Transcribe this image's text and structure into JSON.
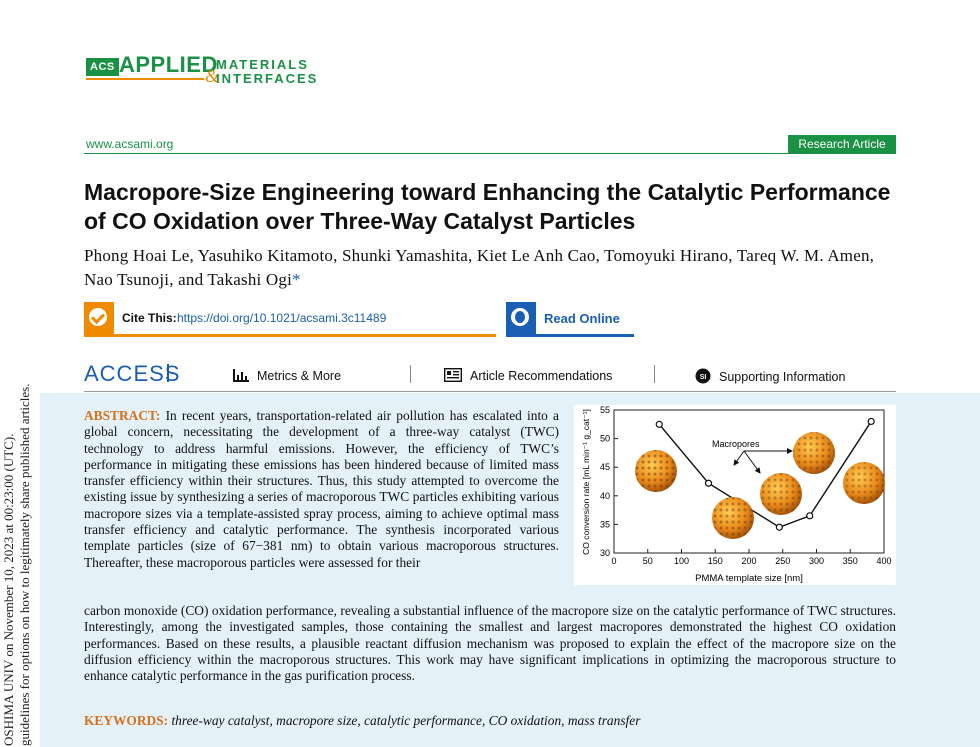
{
  "sidebar": {
    "line1": "OSHIMA UNIV on November 10, 2023 at 00:23:00 (UTC).",
    "line2": "guidelines for options on how to legitimately share published articles."
  },
  "journal": {
    "acs": "ACS",
    "applied": "APPLIED",
    "materials": "MATERIALS",
    "amp": "&",
    "interfaces": "INTERFACES",
    "site": "www.acsami.org",
    "article_type": "Research Article"
  },
  "paper": {
    "title": "Macropore-Size Engineering toward Enhancing the Catalytic Performance of CO Oxidation over Three-Way Catalyst Particles",
    "authors": "Phong Hoai Le, Yasuhiko Kitamoto, Shunki Yamashita, Kiet Le Anh Cao, Tomoyuki Hirano, Tareq W. M. Amen, Nao Tsunoji, and Takashi Ogi",
    "author_star": "*"
  },
  "cite": {
    "label": "Cite This:",
    "doi": "https://doi.org/10.1021/acsami.3c11489",
    "read_online": "Read Online"
  },
  "access_bar": {
    "access": "ACCESS",
    "metrics": "Metrics & More",
    "recommendations": "Article Recommendations",
    "supporting": "Supporting Information",
    "si_badge": "SI"
  },
  "abstract": {
    "heading": "ABSTRACT:",
    "part1": "In recent years, transportation-related air pollution has escalated into a global concern, necessitating the development of a three-way catalyst (TWC) technology to address harmful emissions. However, the efficiency of TWC’s performance in mitigating these emissions has been hindered because of limited mass transfer efficiency within their structures. Thus, this study attempted to overcome the existing issue by synthesizing a series of macroporous TWC particles exhibiting various macropore sizes via a template-assisted spray process, aiming to achieve optimal mass transfer efficiency and catalytic performance. The synthesis incorporated various template particles (size of 67−381 nm) to obtain various macroporous structures. Thereafter, these macroporous particles were assessed for their",
    "part2": "carbon monoxide (CO) oxidation performance, revealing a substantial influence of the macropore size on the catalytic performance of TWC structures. Interestingly, among the investigated samples, those containing the smallest and largest macropores demonstrated the highest CO oxidation performances. Based on these results, a plausible reactant diffusion mechanism was proposed to explain the effect of the macropore size on the diffusion efficiency within the macroporous structures. This work may have significant implications in optimizing the macroporous structure to enhance catalytic performance in the gas purification process."
  },
  "keywords": {
    "label": "KEYWORDS:",
    "list": "three-way catalyst, macropore size, catalytic performance, CO oxidation, mass transfer"
  },
  "chart_data": {
    "type": "line",
    "x": [
      67,
      140,
      245,
      290,
      381
    ],
    "y": [
      52.5,
      42.2,
      34.5,
      36.5,
      53
    ],
    "xlabel": "PMMA template size [nm]",
    "ylabel": "CO conversion rate [mL min⁻¹ g_cat⁻¹]",
    "xlim": [
      0,
      400
    ],
    "ylim": [
      30,
      55
    ],
    "xticks": [
      0,
      50,
      100,
      150,
      200,
      250,
      300,
      350,
      400
    ],
    "yticks": [
      30,
      35,
      40,
      45,
      50,
      55
    ],
    "annotation": "Macropores",
    "grid": false
  }
}
